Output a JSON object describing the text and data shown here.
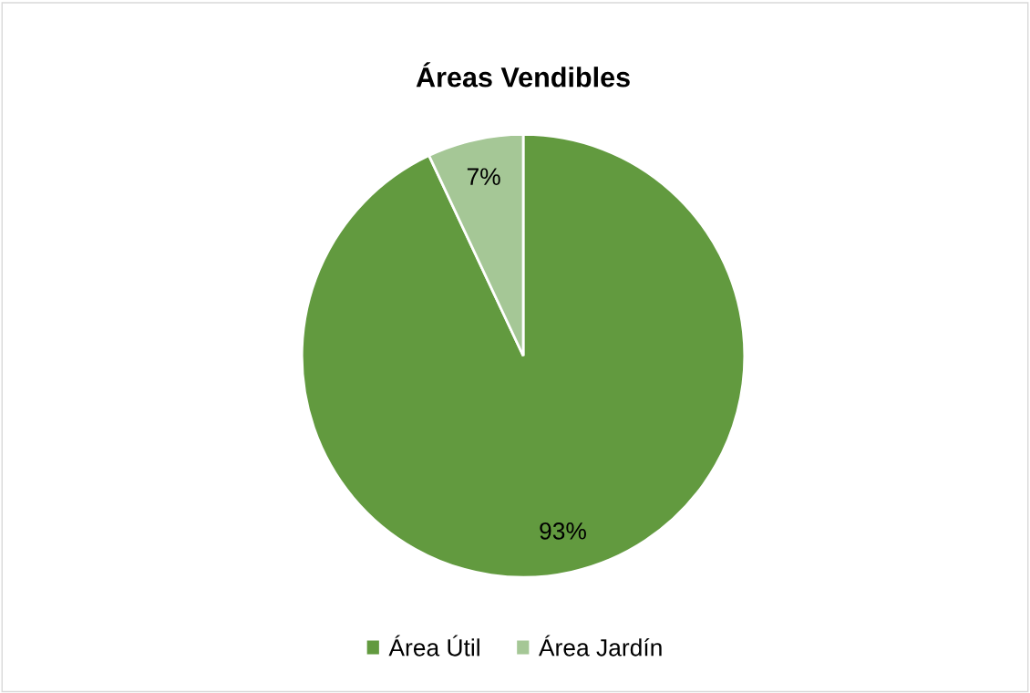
{
  "chart_data": {
    "type": "pie",
    "title": "Áreas Vendibles",
    "categories": [
      "Área Útil",
      "Área Jardín"
    ],
    "values": [
      93,
      7
    ],
    "colors": [
      "#629a3f",
      "#a5c796"
    ],
    "value_labels": [
      "93%",
      "7%"
    ],
    "legend": "bottom"
  }
}
